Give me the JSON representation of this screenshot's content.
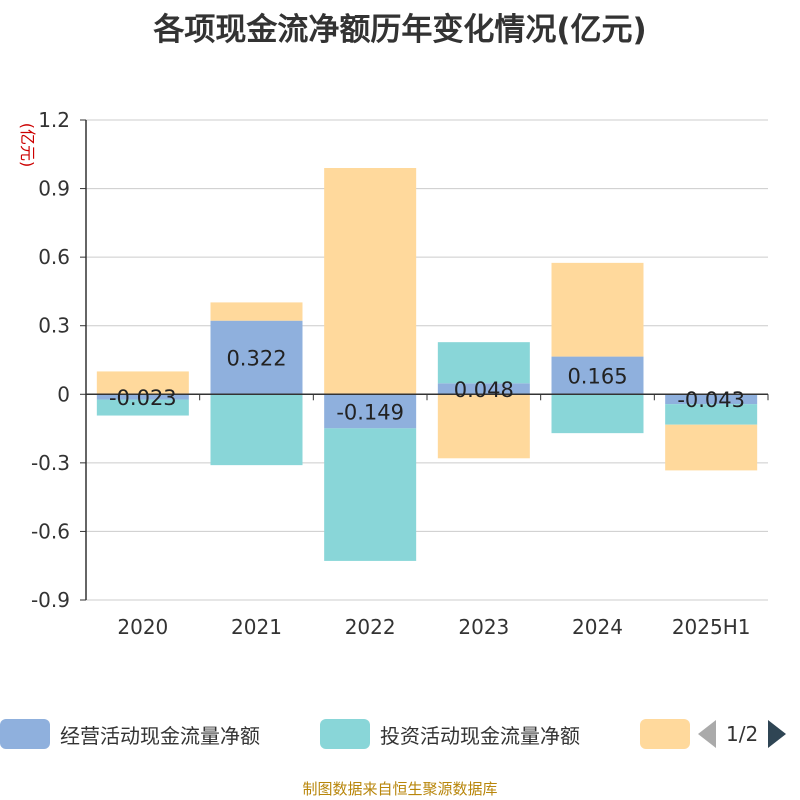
{
  "chart_data": {
    "type": "bar",
    "stacked": true,
    "title": "各项现金流净额历年变化情况(亿元)",
    "ylabel": "(亿元)",
    "ylim": [
      -0.9,
      1.2
    ],
    "yticks": [
      1.2,
      0.9,
      0.6,
      0.3,
      0,
      -0.3,
      -0.6,
      -0.9
    ],
    "ytick_labels": [
      "1.2",
      "0.9",
      "0.6",
      "0.3",
      "0",
      "-0.3",
      "-0.6",
      "-0.9"
    ],
    "categories": [
      "2020",
      "2021",
      "2022",
      "2023",
      "2024",
      "2025H1"
    ],
    "grid": true,
    "legend_position": "bottom",
    "series": [
      {
        "name": "经营活动现金流量净额",
        "color": "#8fb0dd",
        "values": [
          -0.023,
          0.322,
          -0.149,
          0.048,
          0.165,
          -0.043
        ],
        "labels": [
          "-0.023",
          "0.322",
          "-0.149",
          "0.048",
          "0.165",
          "-0.043"
        ]
      },
      {
        "name": "投资活动现金流量净额",
        "color": "#89d6d8",
        "values": [
          -0.07,
          -0.31,
          -0.58,
          0.18,
          -0.17,
          -0.09
        ]
      },
      {
        "name": "",
        "color": "#ffd99c",
        "values": [
          0.1,
          0.08,
          0.99,
          -0.28,
          0.41,
          -0.2
        ]
      }
    ]
  },
  "legend": {
    "page_indicator": "1/2"
  },
  "source_note": "制图数据来自恒生聚源数据库"
}
